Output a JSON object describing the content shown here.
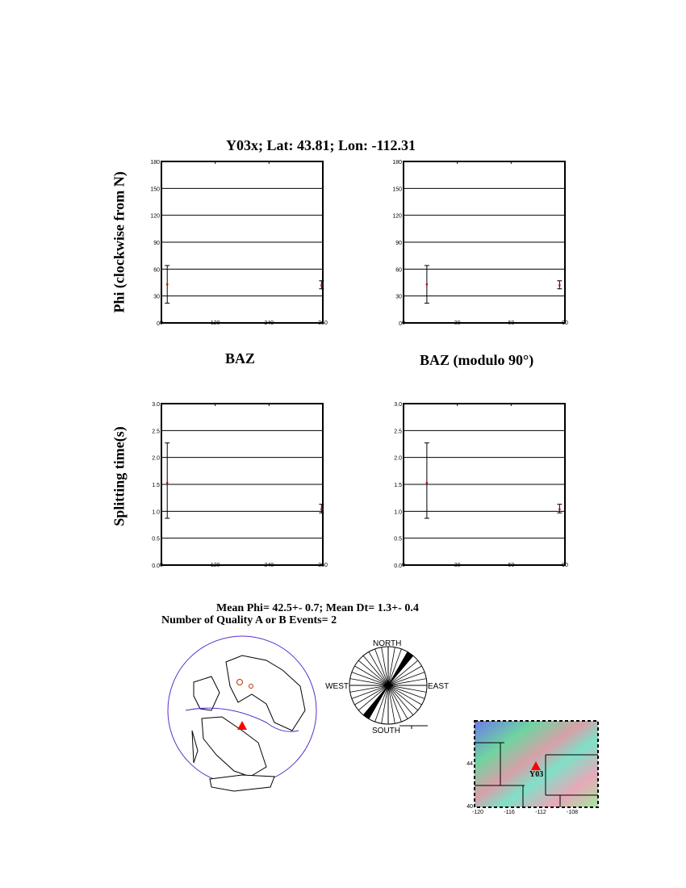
{
  "title": "Y03x; Lat:  43.81;  Lon: -112.31",
  "ylabel_phi": "Phi (clockwise from N)",
  "ylabel_dt": "Splitting time(s)",
  "xlabel_baz": "BAZ",
  "xlabel_mod": "BAZ (modulo 90°)",
  "summary_line1": "Mean Phi= 42.5+-  0.7; Mean Dt=  1.3+-  0.4",
  "summary_line2": "Number of Quality A or B Events=  2",
  "rose": {
    "north": "NORTH",
    "south": "SOUTH",
    "east": "EAST",
    "west": "WEST",
    "black_bins_deg": [
      30,
      210
    ],
    "bin_width_deg": 10
  },
  "map": {
    "station_label": "Y03",
    "lat_ticks": [
      "44",
      "40"
    ],
    "lon_ticks": [
      "-120",
      "-116",
      "-112",
      "-108"
    ]
  },
  "colors": {
    "point": "#cc0000",
    "station": "#ff0000",
    "globe_outline": "#5a2fc8"
  },
  "chart_data": [
    {
      "type": "scatter",
      "name": "phi-vs-baz",
      "xlim": [
        0,
        360
      ],
      "ylim": [
        0,
        180
      ],
      "xticks": [
        "0",
        "120",
        "240",
        "360"
      ],
      "yticks": [
        "0",
        "30",
        "60",
        "90",
        "120",
        "150",
        "180"
      ],
      "grid": true,
      "points": [
        {
          "x": 13,
          "y": 43,
          "lo": 22,
          "hi": 64
        },
        {
          "x": 357,
          "y": 42,
          "lo": 38,
          "hi": 47
        }
      ]
    },
    {
      "type": "scatter",
      "name": "phi-vs-baz-mod90",
      "xlim": [
        0,
        90
      ],
      "ylim": [
        0,
        180
      ],
      "xticks": [
        "0",
        "30",
        "60",
        "90"
      ],
      "yticks": [
        "0",
        "30",
        "60",
        "90",
        "120",
        "150",
        "180"
      ],
      "grid": true,
      "points": [
        {
          "x": 13,
          "y": 43,
          "lo": 22,
          "hi": 64
        },
        {
          "x": 87,
          "y": 42,
          "lo": 38,
          "hi": 47
        }
      ]
    },
    {
      "type": "scatter",
      "name": "dt-vs-baz",
      "xlim": [
        0,
        360
      ],
      "ylim": [
        0,
        3
      ],
      "xticks": [
        "0",
        "120",
        "240",
        "360"
      ],
      "yticks": [
        "0.0",
        "0.5",
        "1.0",
        "1.5",
        "2.0",
        "2.5",
        "3.0"
      ],
      "grid": true,
      "points": [
        {
          "x": 13,
          "y": 1.53,
          "lo": 0.87,
          "hi": 2.27
        },
        {
          "x": 357,
          "y": 1.04,
          "lo": 0.97,
          "hi": 1.13
        }
      ]
    },
    {
      "type": "scatter",
      "name": "dt-vs-baz-mod90",
      "xlim": [
        0,
        90
      ],
      "ylim": [
        0,
        3
      ],
      "xticks": [
        "0",
        "30",
        "60",
        "90"
      ],
      "yticks": [
        "0.0",
        "0.5",
        "1.0",
        "1.5",
        "2.0",
        "2.5",
        "3.0"
      ],
      "grid": true,
      "points": [
        {
          "x": 13,
          "y": 1.53,
          "lo": 0.87,
          "hi": 2.27
        },
        {
          "x": 87,
          "y": 1.04,
          "lo": 0.97,
          "hi": 1.13
        }
      ]
    }
  ]
}
